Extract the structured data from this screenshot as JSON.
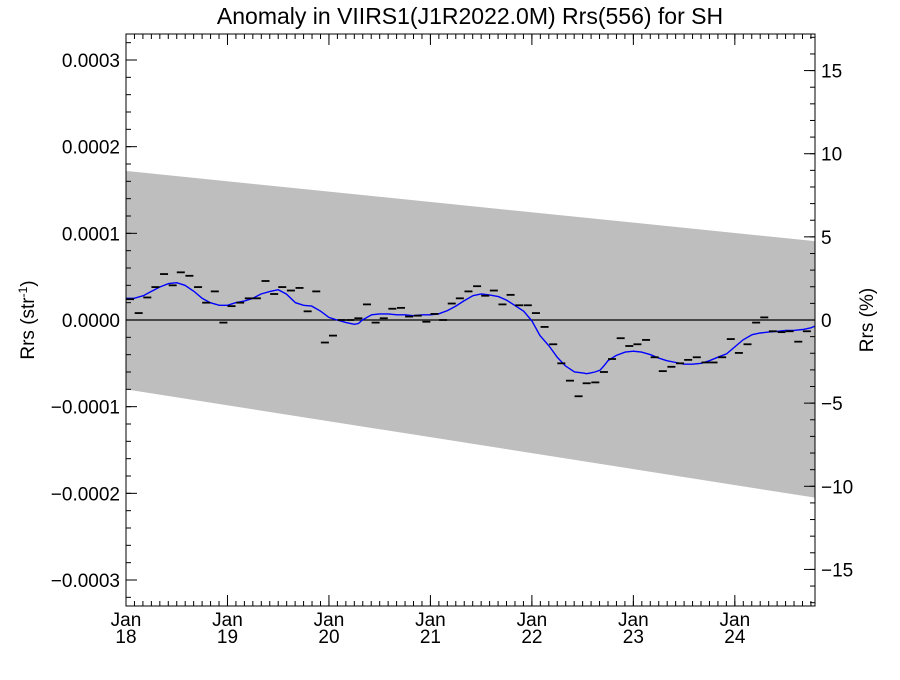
{
  "chart_data": {
    "type": "line",
    "title": "Anomaly in VIIRS1(J1R2022.0M) Rrs(556) for SH",
    "ylabel_left": {
      "base": "Rrs (str",
      "sup": "-1",
      "end": ")"
    },
    "ylabel_right": "Rrs (%)",
    "ylim_left": [
      -0.00033,
      0.00033
    ],
    "ylim_right": [
      -17.2,
      17.2
    ],
    "xlim": [
      2018.0,
      2024.79
    ],
    "grid": false,
    "left_ticks": [
      {
        "value": 0.0003,
        "label": "0.0003"
      },
      {
        "value": 0.0002,
        "label": "0.0002"
      },
      {
        "value": 0.0001,
        "label": "0.0001"
      },
      {
        "value": 0.0,
        "label": "0.0000"
      },
      {
        "value": -0.0001,
        "label": "−0.0001"
      },
      {
        "value": -0.0002,
        "label": "−0.0002"
      },
      {
        "value": -0.0003,
        "label": "−0.0003"
      }
    ],
    "right_ticks": [
      {
        "value": 15,
        "label": "15"
      },
      {
        "value": 10,
        "label": "10"
      },
      {
        "value": 5,
        "label": "5"
      },
      {
        "value": 0,
        "label": "0"
      },
      {
        "value": -5,
        "label": "−5"
      },
      {
        "value": -10,
        "label": "−10"
      },
      {
        "value": -15,
        "label": "−15"
      }
    ],
    "x_ticks": [
      {
        "value": 2018,
        "month": "Jan",
        "year": "18"
      },
      {
        "value": 2019,
        "month": "Jan",
        "year": "19"
      },
      {
        "value": 2020,
        "month": "Jan",
        "year": "20"
      },
      {
        "value": 2021,
        "month": "Jan",
        "year": "21"
      },
      {
        "value": 2022,
        "month": "Jan",
        "year": "22"
      },
      {
        "value": 2023,
        "month": "Jan",
        "year": "23"
      },
      {
        "value": 2024,
        "month": "Jan",
        "year": "24"
      }
    ],
    "uncertainty_band": {
      "color": "#bebebe",
      "start": {
        "x": 2018.0,
        "upper": 0.000172,
        "lower": -8e-05
      },
      "end": {
        "x": 2024.79,
        "upper": 9.1e-05,
        "lower": -0.000205
      }
    },
    "zero_line": 0.0,
    "monthly_points": {
      "color": "#000000",
      "x": [
        2018.04,
        2018.125,
        2018.21,
        2018.29,
        2018.375,
        2018.46,
        2018.54,
        2018.625,
        2018.71,
        2018.79,
        2018.875,
        2018.96,
        2019.04,
        2019.125,
        2019.21,
        2019.29,
        2019.375,
        2019.46,
        2019.54,
        2019.625,
        2019.71,
        2019.79,
        2019.875,
        2019.96,
        2020.04,
        2020.125,
        2020.21,
        2020.29,
        2020.375,
        2020.46,
        2020.54,
        2020.625,
        2020.71,
        2020.79,
        2020.875,
        2020.96,
        2021.04,
        2021.125,
        2021.21,
        2021.29,
        2021.375,
        2021.46,
        2021.54,
        2021.625,
        2021.71,
        2021.79,
        2021.875,
        2021.96,
        2022.04,
        2022.125,
        2022.21,
        2022.29,
        2022.375,
        2022.46,
        2022.54,
        2022.625,
        2022.71,
        2022.79,
        2022.875,
        2022.96,
        2023.04,
        2023.125,
        2023.21,
        2023.29,
        2023.375,
        2023.46,
        2023.54,
        2023.625,
        2023.71,
        2023.79,
        2023.875,
        2023.96,
        2024.04,
        2024.125,
        2024.21,
        2024.29,
        2024.375,
        2024.46,
        2024.54,
        2024.625,
        2024.71
      ],
      "y": [
        2.4e-05,
        8e-06,
        2.6e-05,
        3.8e-05,
        5.3e-05,
        4e-05,
        5.5e-05,
        5.1e-05,
        3.8e-05,
        2e-05,
        3.3e-05,
        -3e-06,
        1.6e-05,
        2e-05,
        2.5e-05,
        2.5e-05,
        4.5e-05,
        3e-05,
        3.8e-05,
        3.4e-05,
        3.7e-05,
        1e-05,
        3.3e-05,
        -2.6e-05,
        -1.8e-05,
        0.0,
        0.0,
        2e-06,
        1.8e-05,
        -3e-06,
        2e-06,
        1.3e-05,
        1.4e-05,
        4e-06,
        5e-06,
        -2e-06,
        7e-06,
        0.0,
        1.9e-05,
        2.5e-05,
        3.3e-05,
        3.9e-05,
        2.8e-05,
        3.4e-05,
        1.8e-05,
        2.9e-05,
        1.7e-05,
        1.7e-05,
        8e-06,
        -8e-06,
        -2.8e-05,
        -5e-05,
        -7e-05,
        -8.8e-05,
        -7.3e-05,
        -7.2e-05,
        -6e-05,
        -4.5e-05,
        -2.1e-05,
        -3e-05,
        -2.8e-05,
        -2.3e-05,
        -4.3e-05,
        -5.9e-05,
        -5.4e-05,
        -5e-05,
        -4.6e-05,
        -4.3e-05,
        -4.9e-05,
        -4.9e-05,
        -4.3e-05,
        -2.2e-05,
        -3.8e-05,
        -2.8e-05,
        -3e-06,
        3e-06,
        -1.3e-05,
        -1.4e-05,
        -1.3e-05,
        -2.5e-05,
        -1.3e-05
      ]
    },
    "series": [
      {
        "color": "#0000ff",
        "x": [
          2018.0,
          2018.08,
          2018.17,
          2018.25,
          2018.33,
          2018.42,
          2018.5,
          2018.58,
          2018.67,
          2018.75,
          2018.83,
          2018.92,
          2019.0,
          2019.08,
          2019.17,
          2019.25,
          2019.33,
          2019.42,
          2019.5,
          2019.58,
          2019.67,
          2019.75,
          2019.83,
          2019.92,
          2020.0,
          2020.08,
          2020.17,
          2020.25,
          2020.29,
          2020.33,
          2020.42,
          2020.5,
          2020.58,
          2020.67,
          2020.75,
          2020.83,
          2020.92,
          2021.0,
          2021.08,
          2021.17,
          2021.25,
          2021.33,
          2021.42,
          2021.5,
          2021.58,
          2021.67,
          2021.75,
          2021.83,
          2021.92,
          2022.0,
          2022.08,
          2022.17,
          2022.25,
          2022.33,
          2022.42,
          2022.5,
          2022.54,
          2022.58,
          2022.62,
          2022.67,
          2022.71,
          2022.75,
          2022.83,
          2022.92,
          2023.0,
          2023.08,
          2023.17,
          2023.25,
          2023.33,
          2023.42,
          2023.5,
          2023.58,
          2023.67,
          2023.75,
          2023.83,
          2023.92,
          2024.0,
          2024.08,
          2024.17,
          2024.25,
          2024.33,
          2024.42,
          2024.5,
          2024.58,
          2024.67,
          2024.75,
          2024.79
        ],
        "y": [
          2.5e-05,
          2.5e-05,
          2.8e-05,
          3.3e-05,
          3.8e-05,
          4.2e-05,
          4.3e-05,
          4e-05,
          3.3e-05,
          2.5e-05,
          2e-05,
          1.7e-05,
          1.7e-05,
          2e-05,
          2.2e-05,
          2.5e-05,
          3e-05,
          3.3e-05,
          3.5e-05,
          3e-05,
          2e-05,
          1.7e-05,
          1.6e-05,
          1e-05,
          3e-06,
          0.0,
          -3e-06,
          -5e-06,
          -4e-06,
          0.0,
          6e-06,
          7e-06,
          7e-06,
          6e-06,
          6e-06,
          5e-06,
          6e-06,
          6e-06,
          7e-06,
          1.1e-05,
          1.6e-05,
          2.2e-05,
          2.8e-05,
          3e-05,
          2.9e-05,
          2.7e-05,
          2.3e-05,
          1.7e-05,
          1e-05,
          -1e-06,
          -1.8e-05,
          -3e-05,
          -4.3e-05,
          -5.3e-05,
          -6e-05,
          -6.1e-05,
          -6.2e-05,
          -6.1e-05,
          -6e-05,
          -5.8e-05,
          -5.3e-05,
          -4.7e-05,
          -4.1e-05,
          -3.7e-05,
          -3.6e-05,
          -3.7e-05,
          -4e-05,
          -4.4e-05,
          -4.7e-05,
          -4.9e-05,
          -5.1e-05,
          -5.1e-05,
          -5e-05,
          -4.7e-05,
          -4.3e-05,
          -3.9e-05,
          -3.1e-05,
          -2.3e-05,
          -1.7e-05,
          -1.5e-05,
          -1.4e-05,
          -1.3e-05,
          -1.2e-05,
          -1.2e-05,
          -1.1e-05,
          -9e-06,
          -7e-06
        ]
      }
    ]
  }
}
